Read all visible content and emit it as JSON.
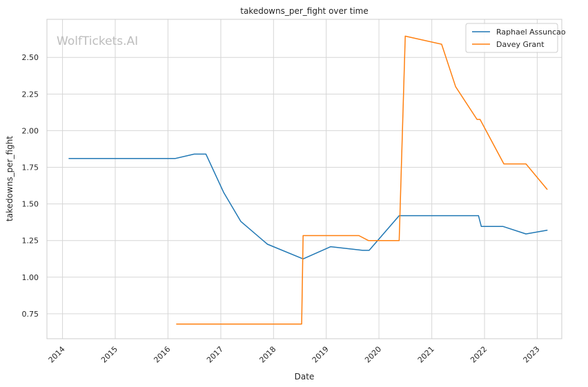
{
  "chart_data": {
    "type": "line",
    "title": "takedowns_per_fight over time",
    "xlabel": "Date",
    "ylabel": "takedowns_per_fight",
    "watermark": "WolfTickets.AI",
    "x_type": "date",
    "xlim": [
      "2013-09-15",
      "2023-06-20"
    ],
    "ylim": [
      0.58,
      2.76
    ],
    "x_ticks": [
      "2014",
      "2015",
      "2016",
      "2017",
      "2018",
      "2019",
      "2020",
      "2021",
      "2022",
      "2023"
    ],
    "y_ticks": [
      0.75,
      1.0,
      1.25,
      1.5,
      1.75,
      2.0,
      2.25,
      2.5
    ],
    "y_tick_labels": [
      "0.75",
      "1.00",
      "1.25",
      "1.50",
      "1.75",
      "2.00",
      "2.25",
      "2.50"
    ],
    "grid": true,
    "legend_position": "top-right",
    "series": [
      {
        "name": "Raphael Assuncao",
        "color": "#1f77b4",
        "points": [
          [
            "2014-02-15",
            1.81
          ],
          [
            "2016-02-20",
            1.81
          ],
          [
            "2016-07-01",
            1.84
          ],
          [
            "2016-09-20",
            1.84
          ],
          [
            "2017-01-20",
            1.58
          ],
          [
            "2017-05-20",
            1.38
          ],
          [
            "2017-11-20",
            1.225
          ],
          [
            "2018-07-25",
            1.125
          ],
          [
            "2019-02-01",
            1.208
          ],
          [
            "2019-09-10",
            1.183
          ],
          [
            "2019-10-25",
            1.183
          ],
          [
            "2020-05-20",
            1.42
          ],
          [
            "2021-11-20",
            1.42
          ],
          [
            "2021-12-10",
            1.346
          ],
          [
            "2022-05-10",
            1.346
          ],
          [
            "2022-10-15",
            1.295
          ],
          [
            "2023-03-10",
            1.32
          ]
        ]
      },
      {
        "name": "Davey Grant",
        "color": "#ff7f0e",
        "points": [
          [
            "2016-03-01",
            0.68
          ],
          [
            "2018-07-15",
            0.68
          ],
          [
            "2018-07-25",
            1.284
          ],
          [
            "2019-08-15",
            1.284
          ],
          [
            "2019-10-20",
            1.25
          ],
          [
            "2020-05-20",
            1.25
          ],
          [
            "2020-07-01",
            2.645
          ],
          [
            "2021-03-10",
            2.59
          ],
          [
            "2021-06-15",
            2.3
          ],
          [
            "2021-11-10",
            2.077
          ],
          [
            "2021-12-01",
            2.077
          ],
          [
            "2022-05-15",
            1.773
          ],
          [
            "2022-10-15",
            1.773
          ],
          [
            "2023-03-10",
            1.6
          ]
        ]
      }
    ]
  }
}
